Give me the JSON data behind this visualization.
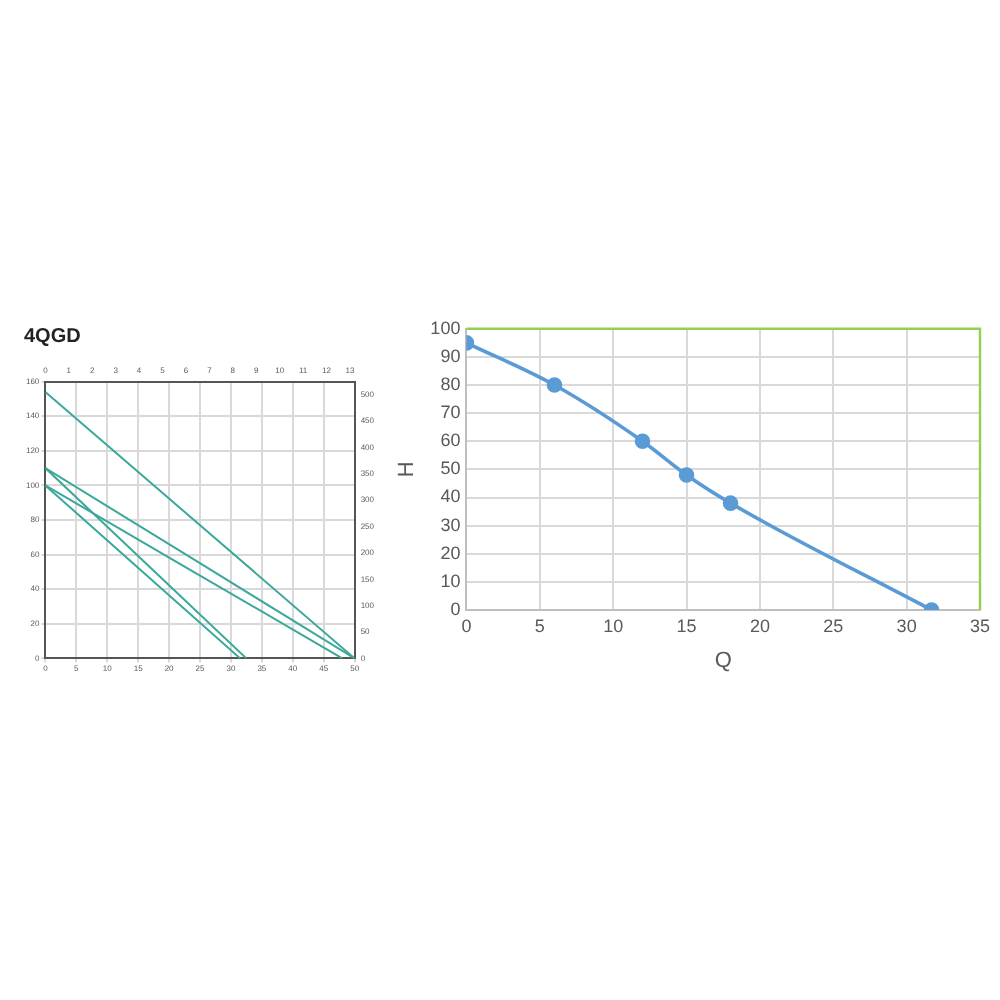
{
  "chart_data": [
    {
      "type": "line",
      "title": "4QGD",
      "marker": "none",
      "grid": true,
      "legend": false,
      "xlim": [
        0,
        50
      ],
      "xticks": [
        0,
        5,
        10,
        15,
        20,
        25,
        30,
        35,
        40,
        45,
        50
      ],
      "ylim": [
        0,
        160
      ],
      "yticks": [
        0,
        20,
        40,
        60,
        80,
        100,
        120,
        140,
        160
      ],
      "y2lim": [
        0,
        525
      ],
      "y2ticks": [
        0,
        50,
        100,
        150,
        200,
        250,
        300,
        350,
        400,
        450,
        500
      ],
      "x2lim": [
        0,
        13.2
      ],
      "x2ticks": [
        0,
        1,
        2,
        3,
        4,
        5,
        6,
        7,
        8,
        9,
        10,
        11,
        12,
        13
      ],
      "series": [
        {
          "color": "#3aa89a",
          "x": [
            0,
            50
          ],
          "values": [
            154,
            0
          ]
        },
        {
          "color": "#3aa89a",
          "x": [
            0,
            50
          ],
          "values": [
            110,
            0
          ]
        },
        {
          "color": "#3aa89a",
          "x": [
            0,
            48
          ],
          "values": [
            100,
            0
          ]
        },
        {
          "color": "#3aa89a",
          "x": [
            0,
            32.5
          ],
          "values": [
            110,
            0
          ]
        },
        {
          "color": "#3aa89a",
          "x": [
            0,
            31.5
          ],
          "values": [
            100,
            0
          ]
        }
      ]
    },
    {
      "type": "line",
      "xlabel": "Q",
      "ylabel": "H",
      "marker": "circle",
      "grid": true,
      "legend": false,
      "xlim": [
        0,
        35
      ],
      "xticks": [
        0,
        5,
        10,
        15,
        20,
        25,
        30,
        35
      ],
      "ylim": [
        0,
        100
      ],
      "yticks": [
        0,
        10,
        20,
        30,
        40,
        50,
        60,
        70,
        80,
        90,
        100
      ],
      "series": [
        {
          "color": "#5b9bd5",
          "x": [
            0,
            6,
            12,
            15,
            18,
            31.7
          ],
          "values": [
            95,
            80,
            60,
            48,
            38,
            0
          ]
        }
      ]
    }
  ]
}
